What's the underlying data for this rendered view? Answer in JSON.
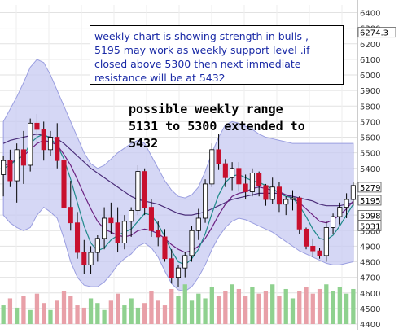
{
  "chart_data": {
    "type": "candlestick",
    "ylim": [
      4400,
      6450
    ],
    "y_ticks": [
      4400,
      4500,
      4600,
      4700,
      4800,
      4900,
      5000,
      5100,
      5200,
      5300,
      5400,
      5500,
      5600,
      5700,
      5800,
      5900,
      6000,
      6100,
      6200,
      6300,
      6400
    ],
    "y_tick_labels": [
      "4400",
      "4500",
      "4600",
      "4700",
      "4800",
      "4900",
      "5000",
      "5100",
      "5200",
      "5300",
      "5400",
      "5500",
      "5600",
      "5700",
      "5800",
      "5900",
      "6000",
      "6100",
      "6200",
      "6300",
      "6400"
    ],
    "grid": true,
    "price_tags": [
      {
        "label": "6274.3",
        "value": 6274,
        "bg": "#ffffff",
        "fg": "#000000"
      },
      {
        "label": "5279",
        "value": 5279,
        "bg": "#ffffff",
        "fg": "#000000"
      },
      {
        "label": "5195",
        "value": 5195,
        "bg": "#ffffff",
        "fg": "#000000"
      },
      {
        "label": "5098",
        "value": 5098,
        "bg": "#ffffff",
        "fg": "#000000"
      },
      {
        "label": "5031",
        "value": 5031,
        "bg": "#ffffff",
        "fg": "#000000"
      }
    ],
    "annotation_box": "weekly chart is showing strength in bulls , \n5195 may work as weekly support level .if \nclosed above 5300 then next immediate \nresistance will be at 5432",
    "annotation_text": "possible weekly range\n5131 to 5300 extended to\n5432",
    "candles": [
      {
        "o": 5360,
        "h": 5480,
        "l": 5220,
        "c": 5450
      },
      {
        "o": 5450,
        "h": 5520,
        "l": 5280,
        "c": 5320
      },
      {
        "o": 5320,
        "h": 5560,
        "l": 5180,
        "c": 5520
      },
      {
        "o": 5520,
        "h": 5640,
        "l": 5300,
        "c": 5420
      },
      {
        "o": 5420,
        "h": 5720,
        "l": 5380,
        "c": 5690
      },
      {
        "o": 5690,
        "h": 5750,
        "l": 5560,
        "c": 5650
      },
      {
        "o": 5650,
        "h": 5700,
        "l": 5450,
        "c": 5520
      },
      {
        "o": 5520,
        "h": 5640,
        "l": 5480,
        "c": 5600
      },
      {
        "o": 5600,
        "h": 5690,
        "l": 5400,
        "c": 5450
      },
      {
        "o": 5450,
        "h": 5520,
        "l": 5100,
        "c": 5150
      },
      {
        "o": 5150,
        "h": 5320,
        "l": 5000,
        "c": 5050
      },
      {
        "o": 5050,
        "h": 5120,
        "l": 4820,
        "c": 4860
      },
      {
        "o": 4860,
        "h": 4940,
        "l": 4720,
        "c": 4780
      },
      {
        "o": 4780,
        "h": 4900,
        "l": 4720,
        "c": 4860
      },
      {
        "o": 4860,
        "h": 4970,
        "l": 4800,
        "c": 4950
      },
      {
        "o": 4950,
        "h": 5150,
        "l": 4880,
        "c": 5080
      },
      {
        "o": 5080,
        "h": 5180,
        "l": 4980,
        "c": 5050
      },
      {
        "o": 5050,
        "h": 5150,
        "l": 4860,
        "c": 4920
      },
      {
        "o": 4920,
        "h": 5100,
        "l": 4880,
        "c": 5060
      },
      {
        "o": 5060,
        "h": 5150,
        "l": 4960,
        "c": 5130
      },
      {
        "o": 5130,
        "h": 5420,
        "l": 5100,
        "c": 5380
      },
      {
        "o": 5380,
        "h": 5400,
        "l": 5100,
        "c": 5150
      },
      {
        "o": 5150,
        "h": 5200,
        "l": 4960,
        "c": 5000
      },
      {
        "o": 5000,
        "h": 5060,
        "l": 4900,
        "c": 4960
      },
      {
        "o": 4960,
        "h": 5010,
        "l": 4800,
        "c": 4820
      },
      {
        "o": 4820,
        "h": 4880,
        "l": 4660,
        "c": 4700
      },
      {
        "o": 4700,
        "h": 4780,
        "l": 4640,
        "c": 4760
      },
      {
        "o": 4760,
        "h": 4860,
        "l": 4700,
        "c": 4840
      },
      {
        "o": 4840,
        "h": 5030,
        "l": 4800,
        "c": 5000
      },
      {
        "o": 5000,
        "h": 5140,
        "l": 4940,
        "c": 5080
      },
      {
        "o": 5080,
        "h": 5330,
        "l": 5050,
        "c": 5300
      },
      {
        "o": 5300,
        "h": 5560,
        "l": 5280,
        "c": 5520
      },
      {
        "o": 5520,
        "h": 5620,
        "l": 5390,
        "c": 5430
      },
      {
        "o": 5430,
        "h": 5460,
        "l": 5280,
        "c": 5340
      },
      {
        "o": 5340,
        "h": 5440,
        "l": 5260,
        "c": 5400
      },
      {
        "o": 5400,
        "h": 5440,
        "l": 5250,
        "c": 5300
      },
      {
        "o": 5300,
        "h": 5360,
        "l": 5200,
        "c": 5250
      },
      {
        "o": 5250,
        "h": 5400,
        "l": 5220,
        "c": 5370
      },
      {
        "o": 5370,
        "h": 5380,
        "l": 5220,
        "c": 5290
      },
      {
        "o": 5290,
        "h": 5300,
        "l": 5160,
        "c": 5200
      },
      {
        "o": 5200,
        "h": 5340,
        "l": 5170,
        "c": 5280
      },
      {
        "o": 5280,
        "h": 5310,
        "l": 5120,
        "c": 5170
      },
      {
        "o": 5170,
        "h": 5220,
        "l": 5100,
        "c": 5200
      },
      {
        "o": 5200,
        "h": 5260,
        "l": 5130,
        "c": 5210
      },
      {
        "o": 5210,
        "h": 5220,
        "l": 4980,
        "c": 5010
      },
      {
        "o": 5010,
        "h": 5020,
        "l": 4880,
        "c": 4900
      },
      {
        "o": 4900,
        "h": 4950,
        "l": 4830,
        "c": 4870
      },
      {
        "o": 4870,
        "h": 4890,
        "l": 4820,
        "c": 4840
      },
      {
        "o": 4840,
        "h": 5060,
        "l": 4800,
        "c": 5020
      },
      {
        "o": 5020,
        "h": 5110,
        "l": 4980,
        "c": 5090
      },
      {
        "o": 5090,
        "h": 5180,
        "l": 5040,
        "c": 5150
      },
      {
        "o": 5150,
        "h": 5240,
        "l": 5080,
        "c": 5200
      },
      {
        "o": 5200,
        "h": 5310,
        "l": 5160,
        "c": 5290
      }
    ],
    "series": [
      {
        "color": "#4b2e7a",
        "values": [
          5560,
          5580,
          5590,
          5600,
          5610,
          5620,
          5610,
          5600,
          5590,
          5560,
          5520,
          5480,
          5440,
          5400,
          5370,
          5340,
          5310,
          5280,
          5250,
          5220,
          5200,
          5190,
          5180,
          5170,
          5150,
          5130,
          5110,
          5100,
          5100,
          5110,
          5120,
          5140,
          5160,
          5180,
          5200,
          5210,
          5220,
          5230,
          5240,
          5240,
          5240,
          5240,
          5230,
          5220,
          5210,
          5200,
          5190,
          5170,
          5160,
          5160,
          5160,
          5170,
          5180
        ]
      },
      {
        "color": "#6b2080",
        "values": [
          5420,
          5430,
          5460,
          5480,
          5520,
          5560,
          5580,
          5570,
          5550,
          5490,
          5420,
          5330,
          5230,
          5140,
          5060,
          5010,
          4990,
          4970,
          4960,
          4970,
          5000,
          5010,
          5000,
          4980,
          4950,
          4910,
          4880,
          4860,
          4870,
          4900,
          4950,
          5020,
          5100,
          5170,
          5220,
          5240,
          5250,
          5270,
          5280,
          5270,
          5260,
          5250,
          5230,
          5210,
          5180,
          5140,
          5100,
          5060,
          5050,
          5070,
          5100,
          5140,
          5190
        ]
      },
      {
        "color": "#1f8a8a",
        "values": [
          5400,
          5420,
          5460,
          5480,
          5560,
          5600,
          5620,
          5590,
          5550,
          5460,
          5330,
          5180,
          5030,
          4920,
          4870,
          4890,
          4940,
          4970,
          4990,
          5010,
          5060,
          5110,
          5100,
          5040,
          4960,
          4870,
          4800,
          4780,
          4820,
          4880,
          4980,
          5110,
          5230,
          5310,
          5350,
          5360,
          5340,
          5320,
          5310,
          5290,
          5270,
          5240,
          5220,
          5210,
          5160,
          5090,
          5010,
          4950,
          4940,
          4970,
          5030,
          5100,
          5170
        ]
      }
    ],
    "band_upper": [
      5700,
      5780,
      5860,
      5950,
      6050,
      6100,
      6080,
      6000,
      5900,
      5800,
      5700,
      5600,
      5500,
      5430,
      5400,
      5420,
      5460,
      5500,
      5530,
      5560,
      5580,
      5560,
      5480,
      5400,
      5320,
      5260,
      5220,
      5210,
      5230,
      5280,
      5380,
      5500,
      5600,
      5680,
      5700,
      5690,
      5670,
      5650,
      5620,
      5600,
      5590,
      5580,
      5570,
      5560,
      5560,
      5560,
      5560,
      5560,
      5560,
      5560,
      5560,
      5560,
      5560
    ],
    "band_lower": [
      5100,
      5050,
      5020,
      5000,
      5020,
      5100,
      5150,
      5120,
      5080,
      4950,
      4800,
      4700,
      4650,
      4640,
      4640,
      4670,
      4720,
      4780,
      4820,
      4850,
      4900,
      4920,
      4890,
      4830,
      4740,
      4660,
      4620,
      4610,
      4640,
      4700,
      4780,
      4880,
      4960,
      5020,
      5060,
      5080,
      5070,
      5050,
      5030,
      5010,
      4990,
      4960,
      4930,
      4900,
      4870,
      4850,
      4830,
      4810,
      4790,
      4780,
      4780,
      4790,
      4800
    ],
    "volumes": [
      40,
      55,
      35,
      60,
      30,
      65,
      45,
      30,
      50,
      70,
      60,
      40,
      35,
      55,
      45,
      30,
      50,
      65,
      40,
      55,
      35,
      45,
      70,
      50,
      40,
      75,
      60,
      85,
      50,
      65,
      55,
      80,
      60,
      70,
      85,
      75,
      60,
      80,
      65,
      70,
      85,
      60,
      75,
      55,
      70,
      80,
      65,
      75,
      85,
      70,
      80,
      65,
      75
    ],
    "volume_ylim": [
      0,
      100
    ]
  }
}
